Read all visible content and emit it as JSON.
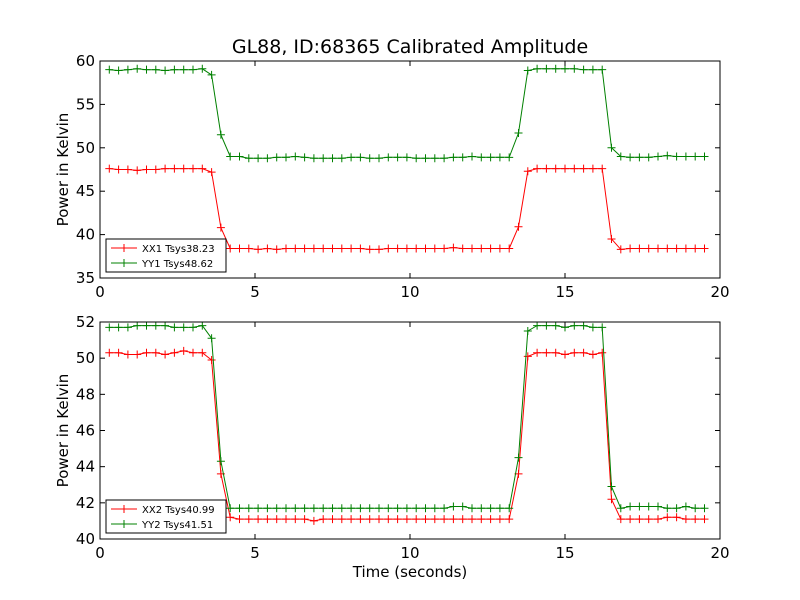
{
  "figure": {
    "title": "GL88, ID:68365 Calibrated Amplitude"
  },
  "chart_data": [
    {
      "type": "line",
      "title": "GL88, ID:68365 Calibrated Amplitude",
      "xlabel": "",
      "ylabel": "Power in Kelvin",
      "xlim": [
        0,
        20
      ],
      "ylim": [
        35,
        60
      ],
      "xticks": [
        0,
        5,
        10,
        15,
        20
      ],
      "yticks": [
        35,
        40,
        45,
        50,
        55,
        60
      ],
      "legend_position": "bottom-left",
      "grid": false,
      "x": [
        0.3,
        0.6,
        0.9,
        1.2,
        1.5,
        1.8,
        2.1,
        2.4,
        2.7,
        3.0,
        3.3,
        3.6,
        3.9,
        4.2,
        4.5,
        4.8,
        5.1,
        5.4,
        5.7,
        6.0,
        6.3,
        6.6,
        6.9,
        7.2,
        7.5,
        7.8,
        8.1,
        8.4,
        8.7,
        9.0,
        9.3,
        9.6,
        9.9,
        10.2,
        10.5,
        10.8,
        11.1,
        11.4,
        11.7,
        12.0,
        12.3,
        12.6,
        12.9,
        13.2,
        13.5,
        13.8,
        14.1,
        14.4,
        14.7,
        15.0,
        15.3,
        15.6,
        15.9,
        16.2,
        16.5,
        16.8,
        17.1,
        17.4,
        17.7,
        18.0,
        18.3,
        18.6,
        18.9,
        19.2,
        19.5
      ],
      "series": [
        {
          "name": "XX1 Tsys38.23",
          "color": "#ff0000",
          "values": [
            47.6,
            47.5,
            47.5,
            47.4,
            47.5,
            47.5,
            47.6,
            47.6,
            47.6,
            47.6,
            47.6,
            47.2,
            40.8,
            38.4,
            38.4,
            38.4,
            38.3,
            38.4,
            38.3,
            38.4,
            38.4,
            38.4,
            38.4,
            38.4,
            38.4,
            38.4,
            38.4,
            38.4,
            38.3,
            38.3,
            38.4,
            38.4,
            38.4,
            38.4,
            38.4,
            38.4,
            38.4,
            38.5,
            38.4,
            38.4,
            38.4,
            38.4,
            38.4,
            38.4,
            40.9,
            47.3,
            47.6,
            47.6,
            47.6,
            47.6,
            47.6,
            47.6,
            47.6,
            47.6,
            39.5,
            38.3,
            38.4,
            38.4,
            38.4,
            38.4,
            38.4,
            38.4,
            38.4,
            38.4,
            38.4
          ]
        },
        {
          "name": "YY1 Tsys48.62",
          "color": "#008000",
          "values": [
            59.0,
            58.9,
            59.0,
            59.1,
            59.0,
            59.0,
            58.9,
            59.0,
            59.0,
            59.0,
            59.1,
            58.4,
            51.5,
            49.0,
            49.0,
            48.8,
            48.8,
            48.8,
            48.9,
            48.9,
            49.0,
            48.9,
            48.8,
            48.8,
            48.8,
            48.8,
            48.9,
            48.9,
            48.8,
            48.8,
            48.9,
            48.9,
            48.9,
            48.8,
            48.8,
            48.8,
            48.8,
            48.9,
            48.9,
            49.0,
            48.9,
            48.9,
            48.9,
            48.9,
            51.7,
            58.9,
            59.1,
            59.1,
            59.1,
            59.1,
            59.1,
            59.0,
            59.0,
            59.0,
            50.0,
            49.0,
            48.9,
            48.9,
            48.9,
            49.0,
            49.1,
            49.0,
            49.0,
            49.0,
            49.0
          ]
        }
      ]
    },
    {
      "type": "line",
      "title": "",
      "xlabel": "Time (seconds)",
      "ylabel": "Power in Kelvin",
      "xlim": [
        0,
        20
      ],
      "ylim": [
        40,
        52
      ],
      "xticks": [
        0,
        5,
        10,
        15,
        20
      ],
      "yticks": [
        40,
        42,
        44,
        46,
        48,
        50,
        52
      ],
      "legend_position": "bottom-left",
      "grid": false,
      "x": [
        0.3,
        0.6,
        0.9,
        1.2,
        1.5,
        1.8,
        2.1,
        2.4,
        2.7,
        3.0,
        3.3,
        3.6,
        3.9,
        4.2,
        4.5,
        4.8,
        5.1,
        5.4,
        5.7,
        6.0,
        6.3,
        6.6,
        6.9,
        7.2,
        7.5,
        7.8,
        8.1,
        8.4,
        8.7,
        9.0,
        9.3,
        9.6,
        9.9,
        10.2,
        10.5,
        10.8,
        11.1,
        11.4,
        11.7,
        12.0,
        12.3,
        12.6,
        12.9,
        13.2,
        13.5,
        13.8,
        14.1,
        14.4,
        14.7,
        15.0,
        15.3,
        15.6,
        15.9,
        16.2,
        16.5,
        16.8,
        17.1,
        17.4,
        17.7,
        18.0,
        18.3,
        18.6,
        18.9,
        19.2,
        19.5
      ],
      "series": [
        {
          "name": "XX2 Tsys40.99",
          "color": "#ff0000",
          "values": [
            50.3,
            50.3,
            50.2,
            50.2,
            50.3,
            50.3,
            50.2,
            50.3,
            50.4,
            50.3,
            50.3,
            49.9,
            43.6,
            41.2,
            41.1,
            41.1,
            41.1,
            41.1,
            41.1,
            41.1,
            41.1,
            41.1,
            41.0,
            41.1,
            41.1,
            41.1,
            41.1,
            41.1,
            41.1,
            41.1,
            41.1,
            41.1,
            41.1,
            41.1,
            41.1,
            41.1,
            41.1,
            41.1,
            41.1,
            41.1,
            41.1,
            41.1,
            41.1,
            41.1,
            43.6,
            50.1,
            50.3,
            50.3,
            50.3,
            50.2,
            50.3,
            50.3,
            50.2,
            50.3,
            42.2,
            41.1,
            41.1,
            41.1,
            41.1,
            41.1,
            41.2,
            41.2,
            41.1,
            41.1,
            41.1
          ]
        },
        {
          "name": "YY2 Tsys41.51",
          "color": "#008000",
          "values": [
            51.7,
            51.7,
            51.7,
            51.8,
            51.8,
            51.8,
            51.8,
            51.7,
            51.7,
            51.7,
            51.8,
            51.1,
            44.3,
            41.7,
            41.7,
            41.7,
            41.7,
            41.7,
            41.7,
            41.7,
            41.7,
            41.7,
            41.7,
            41.7,
            41.7,
            41.7,
            41.7,
            41.7,
            41.7,
            41.7,
            41.7,
            41.7,
            41.7,
            41.7,
            41.7,
            41.7,
            41.7,
            41.8,
            41.8,
            41.7,
            41.7,
            41.7,
            41.7,
            41.7,
            44.5,
            51.5,
            51.8,
            51.8,
            51.8,
            51.7,
            51.8,
            51.8,
            51.7,
            51.7,
            42.9,
            41.7,
            41.8,
            41.8,
            41.8,
            41.8,
            41.7,
            41.7,
            41.8,
            41.7,
            41.7
          ]
        }
      ]
    }
  ]
}
